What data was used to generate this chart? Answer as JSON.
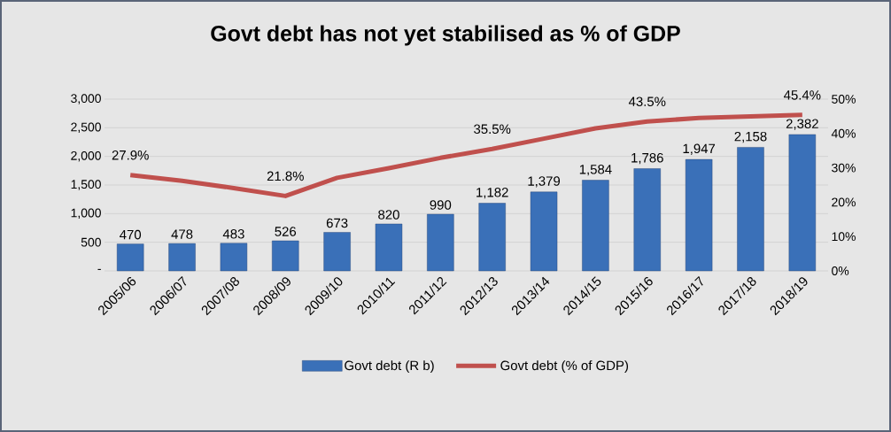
{
  "chart_data": {
    "type": "bar",
    "title": "Govt debt has not yet stabilised as % of GDP",
    "categories": [
      "2005/06",
      "2006/07",
      "2007/08",
      "2008/09",
      "2009/10",
      "2010/11",
      "2011/12",
      "2012/13",
      "2013/14",
      "2014/15",
      "2015/16",
      "2016/17",
      "2017/18",
      "2018/19"
    ],
    "series": [
      {
        "name": "Govt debt (R b)",
        "color": "#3a70b8",
        "values": [
          470,
          478,
          483,
          526,
          673,
          820,
          990,
          1182,
          1379,
          1584,
          1786,
          1947,
          2158,
          2382
        ],
        "value_labels": [
          "470",
          "478",
          "483",
          "526",
          "673",
          "820",
          "990",
          "1,182",
          "1,379",
          "1,584",
          "1,786",
          "1,947",
          "2,158",
          "2,382"
        ]
      },
      {
        "name": "Govt debt (% of GDP)",
        "type": "line",
        "axis": "y2",
        "color": "#c0504d",
        "values": [
          27.9,
          26.2,
          24.1,
          21.8,
          27.1,
          29.9,
          32.9,
          35.5,
          38.5,
          41.5,
          43.5,
          44.5,
          45.0,
          45.4
        ],
        "value_labels": [
          "27.9%",
          null,
          null,
          "21.8%",
          null,
          null,
          null,
          "35.5%",
          null,
          null,
          "43.5%",
          null,
          null,
          "45.4%"
        ]
      }
    ],
    "ylim": [
      0,
      3000
    ],
    "yticks": [
      {
        "value": 0,
        "label": "-"
      },
      {
        "value": 500,
        "label": "500"
      },
      {
        "value": 1000,
        "label": "1,000"
      },
      {
        "value": 1500,
        "label": "1,500"
      },
      {
        "value": 2000,
        "label": "2,000"
      },
      {
        "value": 2500,
        "label": "2,500"
      },
      {
        "value": 3000,
        "label": "3,000"
      }
    ],
    "y2lim": [
      0,
      50
    ],
    "y2ticks": [
      {
        "value": 0,
        "label": "0%"
      },
      {
        "value": 10,
        "label": "10%"
      },
      {
        "value": 20,
        "label": "20%"
      },
      {
        "value": 30,
        "label": "30%"
      },
      {
        "value": 40,
        "label": "40%"
      },
      {
        "value": 50,
        "label": "50%"
      }
    ],
    "grid": "y",
    "legend": "bottom",
    "marker": "none",
    "line_style": "solid"
  }
}
